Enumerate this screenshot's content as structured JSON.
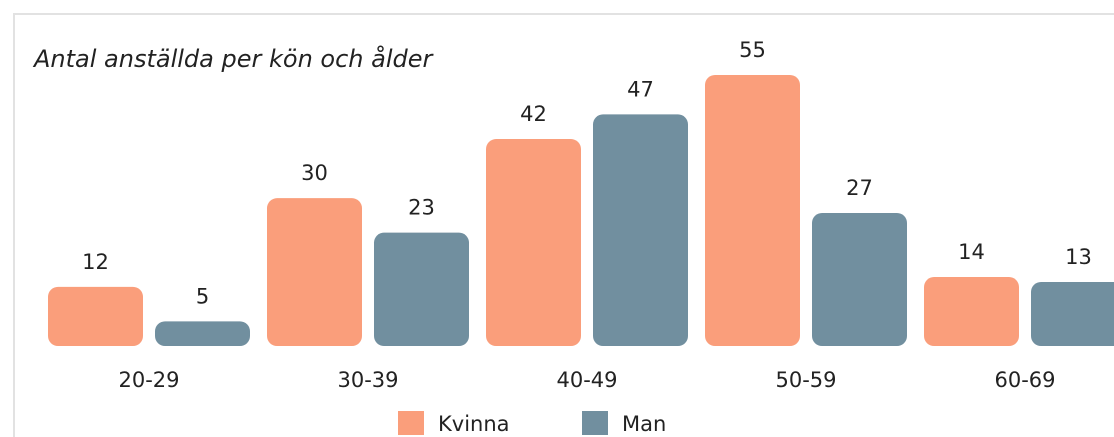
{
  "chart_data": {
    "type": "bar",
    "title": "Antal anställda per kön och ålder",
    "categories": [
      "20-29",
      "30-39",
      "40-49",
      "50-59",
      "60-69"
    ],
    "series": [
      {
        "name": "Kvinna",
        "color": "#fa9e7b",
        "values": [
          12,
          30,
          42,
          55,
          14
        ]
      },
      {
        "name": "Man",
        "color": "#718f9f",
        "values": [
          5,
          23,
          47,
          27,
          13
        ]
      }
    ]
  }
}
